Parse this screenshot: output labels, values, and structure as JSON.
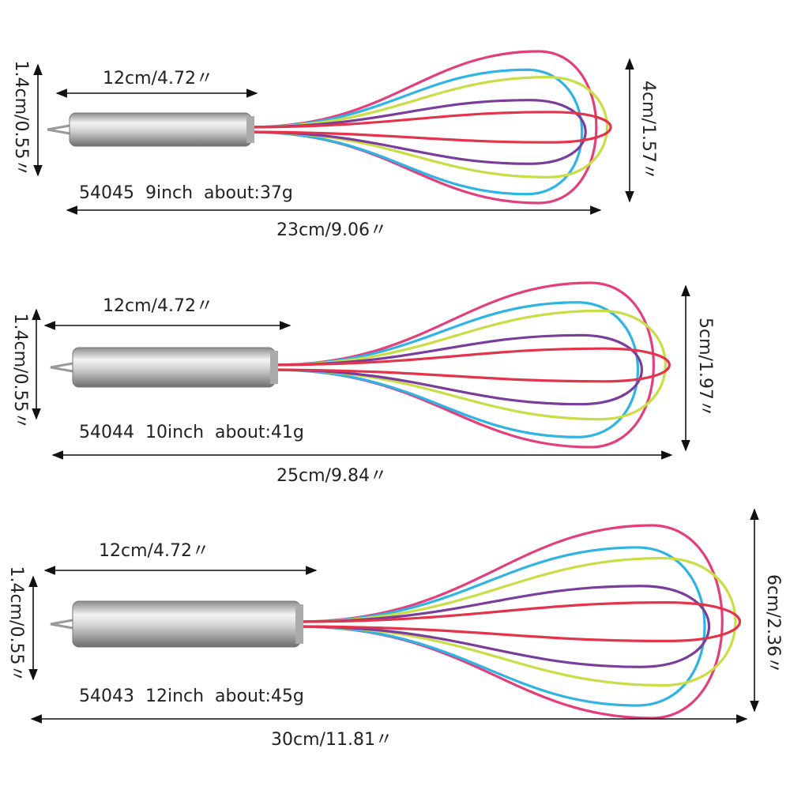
{
  "whisks": [
    {
      "handle_length": "12cm/4.72〃",
      "handle_diameter": "1.4cm/0.55〃",
      "model": "54045  9inch  about:37g",
      "total_length": "23cm/9.06〃",
      "head_width": "4cm/1.57〃"
    },
    {
      "handle_length": "12cm/4.72〃",
      "handle_diameter": "1.4cm/0.55〃",
      "model": "54044  10inch  about:41g",
      "total_length": "25cm/9.84〃",
      "head_width": "5cm/1.97〃"
    },
    {
      "handle_length": "12cm/4.72〃",
      "handle_diameter": "1.4cm/0.55〃",
      "model": "54043  12inch  about:45g",
      "total_length": "30cm/11.81〃",
      "head_width": "6cm/2.36〃"
    }
  ]
}
